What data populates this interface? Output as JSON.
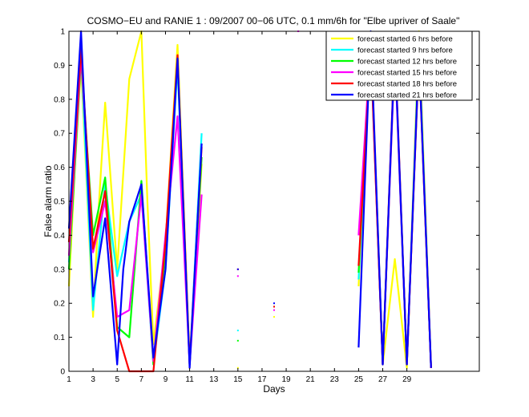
{
  "chart_data": {
    "type": "line",
    "title": "COSMO−EU and RANIE 1 : 09/2007 00−06 UTC, 0.1 mm/6h for \"Elbe upriver of Saale\"",
    "xlabel": "Days",
    "ylabel": "False alarm ratio",
    "xlim": [
      1,
      35
    ],
    "ylim": [
      0,
      1
    ],
    "xticks": [
      1,
      3,
      5,
      7,
      9,
      11,
      13,
      15,
      17,
      19,
      21,
      23,
      25,
      27,
      29
    ],
    "yticks": [
      0,
      0.1,
      0.2,
      0.3,
      0.4,
      0.5,
      0.6,
      0.7,
      0.8,
      0.9,
      1
    ],
    "legend_position": "top-right",
    "series": [
      {
        "name": "forecast started 6 hrs before",
        "color": "#ffff00",
        "segments": [
          [
            [
              1,
              0.25
            ],
            [
              1.5,
              0.6
            ],
            [
              2,
              0.9
            ],
            [
              3,
              0.16
            ],
            [
              3.5,
              0.5
            ],
            [
              4,
              0.79
            ],
            [
              5,
              0.3
            ],
            [
              6,
              0.86
            ],
            [
              7,
              1.0
            ],
            [
              7.5,
              0.5
            ],
            [
              8,
              0.08
            ],
            [
              9,
              0.38
            ],
            [
              10,
              0.96
            ],
            [
              11,
              0.03
            ],
            [
              12,
              0.61
            ]
          ],
          [
            [
              25,
              0.25
            ],
            [
              26,
              1.0
            ],
            [
              27,
              0.02
            ],
            [
              28,
              0.33
            ],
            [
              29,
              0.01
            ],
            [
              30,
              1.0
            ],
            [
              31,
              0.01
            ]
          ]
        ],
        "points": [
          [
            15,
            0.01
          ],
          [
            18,
            0.16
          ]
        ]
      },
      {
        "name": "forecast started 9 hrs before",
        "color": "#00ffff",
        "segments": [
          [
            [
              1,
              0.32
            ],
            [
              2,
              0.93
            ],
            [
              3,
              0.18
            ],
            [
              4,
              0.55
            ],
            [
              5,
              0.28
            ],
            [
              6,
              0.44
            ],
            [
              7,
              0.52
            ],
            [
              8,
              0.02
            ],
            [
              9,
              0.3
            ],
            [
              10,
              0.9
            ],
            [
              11,
              0.02
            ],
            [
              12,
              0.7
            ]
          ],
          [
            [
              25,
              0.27
            ],
            [
              26,
              0.98
            ],
            [
              27,
              0.02
            ],
            [
              28,
              0.95
            ],
            [
              29,
              0.02
            ],
            [
              30,
              0.97
            ],
            [
              31,
              0.01
            ]
          ]
        ],
        "points": [
          [
            15,
            0.12
          ],
          [
            18,
            0.19
          ]
        ]
      },
      {
        "name": "forecast started 12 hrs before",
        "color": "#00ff00",
        "segments": [
          [
            [
              1,
              0.3
            ],
            [
              2,
              0.92
            ],
            [
              3,
              0.4
            ],
            [
              4,
              0.57
            ],
            [
              5,
              0.13
            ],
            [
              6,
              0.1
            ],
            [
              7,
              0.56
            ],
            [
              8,
              0.02
            ],
            [
              9,
              0.35
            ],
            [
              10,
              0.92
            ],
            [
              11,
              0.02
            ],
            [
              12,
              0.63
            ]
          ],
          [
            [
              25,
              0.29
            ],
            [
              26,
              0.97
            ],
            [
              27,
              0.02
            ],
            [
              28,
              0.95
            ],
            [
              29,
              0.02
            ],
            [
              30,
              0.95
            ],
            [
              31,
              0.01
            ]
          ]
        ],
        "points": [
          [
            15,
            0.09
          ],
          [
            18,
            0.19
          ]
        ]
      },
      {
        "name": "forecast started 15 hrs before",
        "color": "#ff00ff",
        "segments": [
          [
            [
              1,
              0.34
            ],
            [
              2,
              0.93
            ],
            [
              3,
              0.35
            ],
            [
              4,
              0.5
            ],
            [
              5,
              0.16
            ],
            [
              6,
              0.18
            ],
            [
              7,
              0.52
            ],
            [
              8,
              0.03
            ],
            [
              9,
              0.4
            ],
            [
              10,
              0.75
            ],
            [
              11,
              0.02
            ],
            [
              12,
              0.52
            ]
          ],
          [
            [
              25,
              0.4
            ],
            [
              26,
              0.96
            ],
            [
              27,
              0.02
            ],
            [
              28,
              0.94
            ],
            [
              29,
              0.02
            ],
            [
              30,
              0.94
            ],
            [
              31,
              0.01
            ]
          ]
        ],
        "points": [
          [
            15,
            0.28
          ],
          [
            18,
            0.18
          ],
          [
            20,
            1.0
          ]
        ]
      },
      {
        "name": "forecast started 18 hrs before",
        "color": "#ff0000",
        "segments": [
          [
            [
              1,
              0.38
            ],
            [
              2,
              0.95
            ],
            [
              3,
              0.36
            ],
            [
              4,
              0.53
            ],
            [
              5,
              0.12
            ],
            [
              6,
              0.0
            ],
            [
              8,
              0.0
            ],
            [
              9,
              0.38
            ],
            [
              10,
              0.93
            ],
            [
              11,
              0.02
            ],
            [
              12,
              0.66
            ]
          ],
          [
            [
              25,
              0.31
            ],
            [
              26,
              0.95
            ],
            [
              27,
              0.02
            ],
            [
              28,
              0.97
            ],
            [
              29,
              0.02
            ],
            [
              30,
              0.93
            ],
            [
              31,
              0.01
            ]
          ]
        ],
        "points": [
          [
            15,
            0.3
          ],
          [
            18,
            0.19
          ]
        ]
      },
      {
        "name": "forecast started 21 hrs before",
        "color": "#0000ff",
        "segments": [
          [
            [
              1,
              0.42
            ],
            [
              2,
              1.0
            ],
            [
              3,
              0.22
            ],
            [
              4,
              0.45
            ],
            [
              5,
              0.02
            ],
            [
              5.5,
              0.3
            ],
            [
              6,
              0.44
            ],
            [
              7,
              0.55
            ],
            [
              8,
              0.04
            ],
            [
              9,
              0.3
            ],
            [
              10,
              0.92
            ],
            [
              11,
              0.01
            ],
            [
              12,
              0.67
            ]
          ],
          [
            [
              25,
              0.07
            ],
            [
              26,
              1.0
            ],
            [
              27,
              0.02
            ],
            [
              28,
              0.96
            ],
            [
              29,
              0.02
            ],
            [
              30,
              0.94
            ],
            [
              31,
              0.01
            ]
          ]
        ],
        "points": [
          [
            15,
            0.3
          ],
          [
            18,
            0.2
          ]
        ]
      }
    ]
  }
}
